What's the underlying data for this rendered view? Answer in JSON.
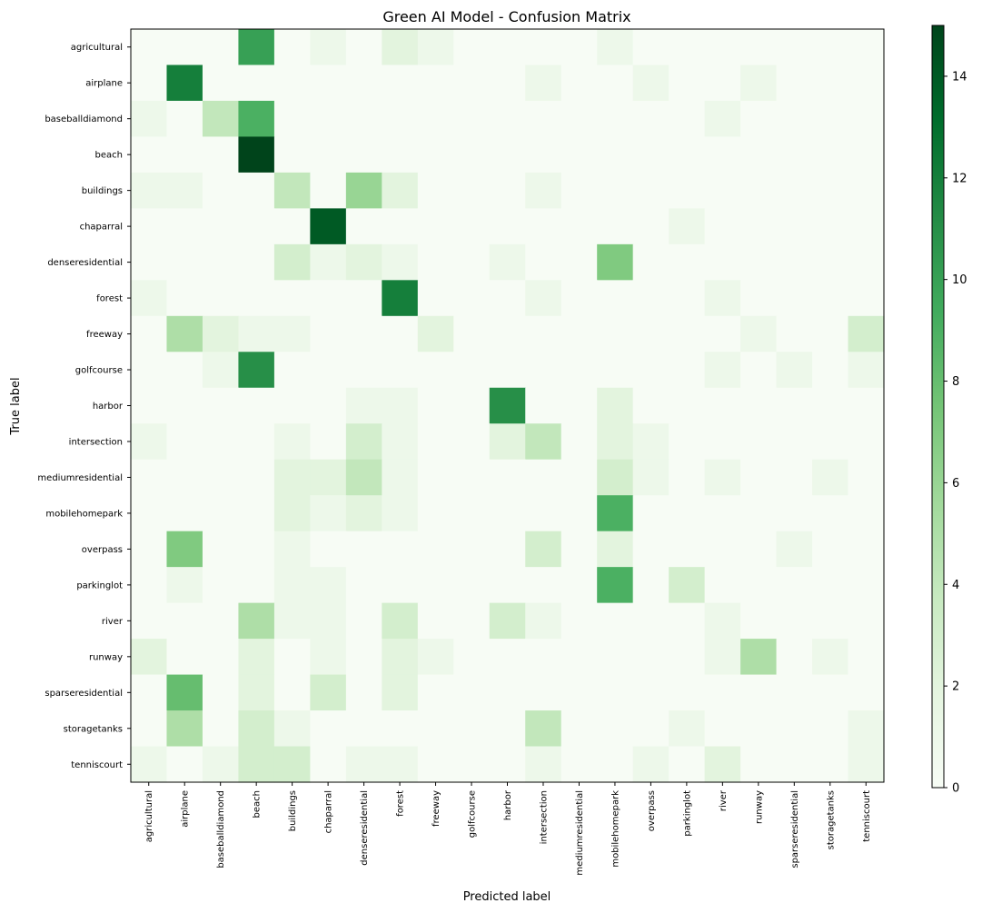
{
  "chart_data": {
    "type": "heatmap",
    "title": "Green AI Model - Confusion Matrix",
    "xlabel": "Predicted label",
    "ylabel": "True label",
    "colormap": "Greens",
    "vmin": 0,
    "vmax": 15,
    "colorbar_ticks": [
      0,
      2,
      4,
      6,
      8,
      10,
      12,
      14
    ],
    "labels": [
      "agricultural",
      "airplane",
      "baseballdiamond",
      "beach",
      "buildings",
      "chaparral",
      "denseresidential",
      "forest",
      "freeway",
      "golfcourse",
      "harbor",
      "intersection",
      "mediumresidential",
      "mobilehomepark",
      "overpass",
      "parkinglot",
      "river",
      "runway",
      "sparseresidential",
      "storagetanks",
      "tenniscourt"
    ],
    "matrix": [
      [
        0,
        0,
        0,
        10,
        0,
        1,
        0,
        2,
        1,
        0,
        0,
        0,
        0,
        1,
        0,
        0,
        0,
        0,
        0,
        0,
        0
      ],
      [
        0,
        12,
        0,
        0,
        0,
        0,
        0,
        0,
        0,
        0,
        0,
        1,
        0,
        0,
        1,
        0,
        0,
        1,
        0,
        0,
        0
      ],
      [
        1,
        0,
        4,
        9,
        0,
        0,
        0,
        0,
        0,
        0,
        0,
        0,
        0,
        0,
        0,
        0,
        1,
        0,
        0,
        0,
        0
      ],
      [
        0,
        0,
        0,
        15,
        0,
        0,
        0,
        0,
        0,
        0,
        0,
        0,
        0,
        0,
        0,
        0,
        0,
        0,
        0,
        0,
        0
      ],
      [
        1,
        1,
        0,
        0,
        4,
        0,
        6,
        2,
        0,
        0,
        0,
        1,
        0,
        0,
        0,
        0,
        0,
        0,
        0,
        0,
        0
      ],
      [
        0,
        0,
        0,
        0,
        0,
        14,
        0,
        0,
        0,
        0,
        0,
        0,
        0,
        0,
        0,
        1,
        0,
        0,
        0,
        0,
        0
      ],
      [
        0,
        0,
        0,
        0,
        3,
        1,
        2,
        1,
        0,
        0,
        1,
        0,
        0,
        7,
        0,
        0,
        0,
        0,
        0,
        0,
        0
      ],
      [
        1,
        0,
        0,
        0,
        0,
        0,
        0,
        12,
        0,
        0,
        0,
        1,
        0,
        0,
        0,
        0,
        1,
        0,
        0,
        0,
        0
      ],
      [
        0,
        5,
        2,
        1,
        1,
        0,
        0,
        0,
        2,
        0,
        0,
        0,
        0,
        0,
        0,
        0,
        0,
        1,
        0,
        0,
        3
      ],
      [
        0,
        0,
        1,
        11,
        0,
        0,
        0,
        0,
        0,
        0,
        0,
        0,
        0,
        0,
        0,
        0,
        1,
        0,
        1,
        0,
        1
      ],
      [
        0,
        0,
        0,
        0,
        0,
        0,
        1,
        1,
        0,
        0,
        11,
        0,
        0,
        2,
        0,
        0,
        0,
        0,
        0,
        0,
        0
      ],
      [
        1,
        0,
        0,
        0,
        1,
        0,
        3,
        1,
        0,
        0,
        2,
        4,
        0,
        2,
        1,
        0,
        0,
        0,
        0,
        0,
        0
      ],
      [
        0,
        0,
        0,
        0,
        2,
        2,
        4,
        1,
        0,
        0,
        0,
        0,
        0,
        3,
        1,
        0,
        1,
        0,
        0,
        1,
        0
      ],
      [
        0,
        0,
        0,
        0,
        2,
        1,
        2,
        1,
        0,
        0,
        0,
        0,
        0,
        9,
        0,
        0,
        0,
        0,
        0,
        0,
        0
      ],
      [
        0,
        7,
        0,
        0,
        1,
        0,
        0,
        0,
        0,
        0,
        0,
        3,
        0,
        2,
        0,
        0,
        0,
        0,
        1,
        0,
        0
      ],
      [
        0,
        1,
        0,
        0,
        1,
        1,
        0,
        0,
        0,
        0,
        0,
        0,
        0,
        9,
        0,
        3,
        0,
        0,
        0,
        0,
        0
      ],
      [
        0,
        0,
        0,
        5,
        1,
        1,
        0,
        3,
        0,
        0,
        3,
        1,
        0,
        0,
        0,
        0,
        1,
        0,
        0,
        0,
        0
      ],
      [
        2,
        0,
        0,
        2,
        0,
        1,
        0,
        2,
        1,
        0,
        0,
        0,
        0,
        0,
        0,
        0,
        1,
        5,
        0,
        1,
        0
      ],
      [
        0,
        8,
        0,
        2,
        0,
        3,
        0,
        2,
        0,
        0,
        0,
        0,
        0,
        0,
        0,
        0,
        0,
        0,
        0,
        0,
        0
      ],
      [
        0,
        5,
        0,
        3,
        1,
        0,
        0,
        0,
        0,
        0,
        0,
        4,
        0,
        0,
        0,
        1,
        0,
        0,
        0,
        0,
        1
      ],
      [
        1,
        0,
        1,
        3,
        3,
        0,
        1,
        1,
        0,
        0,
        0,
        1,
        0,
        0,
        1,
        0,
        2,
        0,
        0,
        0,
        1
      ]
    ]
  }
}
